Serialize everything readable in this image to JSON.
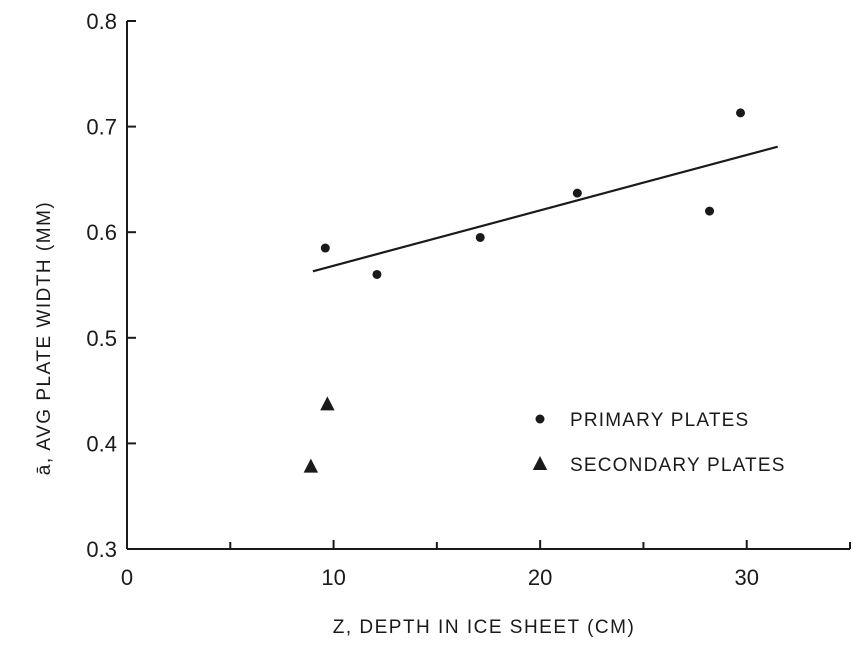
{
  "chart_data": {
    "type": "scatter",
    "title": "",
    "xlabel": "Z, DEPTH IN ICE SHEET (CM)",
    "ylabel": "ā, AVG PLATE WIDTH (MM)",
    "xlim": [
      0,
      35
    ],
    "ylim": [
      0.3,
      0.8
    ],
    "x_ticks": [
      0,
      10,
      20,
      30
    ],
    "x_tick_labels": [
      "0",
      "10",
      "20",
      "30"
    ],
    "y_ticks": [
      0.3,
      0.4,
      0.5,
      0.6,
      0.7,
      0.8
    ],
    "y_tick_labels": [
      "0.3",
      "0.4",
      "0.5",
      "0.6",
      "0.7",
      "0.8"
    ],
    "grid": false,
    "legend_position": "lower-right",
    "series": [
      {
        "name": "PRIMARY PLATES",
        "marker": "circle",
        "color": "#1a1a1a",
        "x": [
          9.6,
          12.1,
          17.1,
          21.8,
          28.2,
          29.7
        ],
        "y": [
          0.585,
          0.56,
          0.595,
          0.637,
          0.62,
          0.713
        ]
      },
      {
        "name": "SECONDARY PLATES",
        "marker": "triangle",
        "color": "#1a1a1a",
        "x": [
          9.7,
          8.9
        ],
        "y": [
          0.437,
          0.378
        ]
      }
    ],
    "fit_line": {
      "x": [
        9.0,
        31.5
      ],
      "y": [
        0.563,
        0.681
      ]
    }
  }
}
